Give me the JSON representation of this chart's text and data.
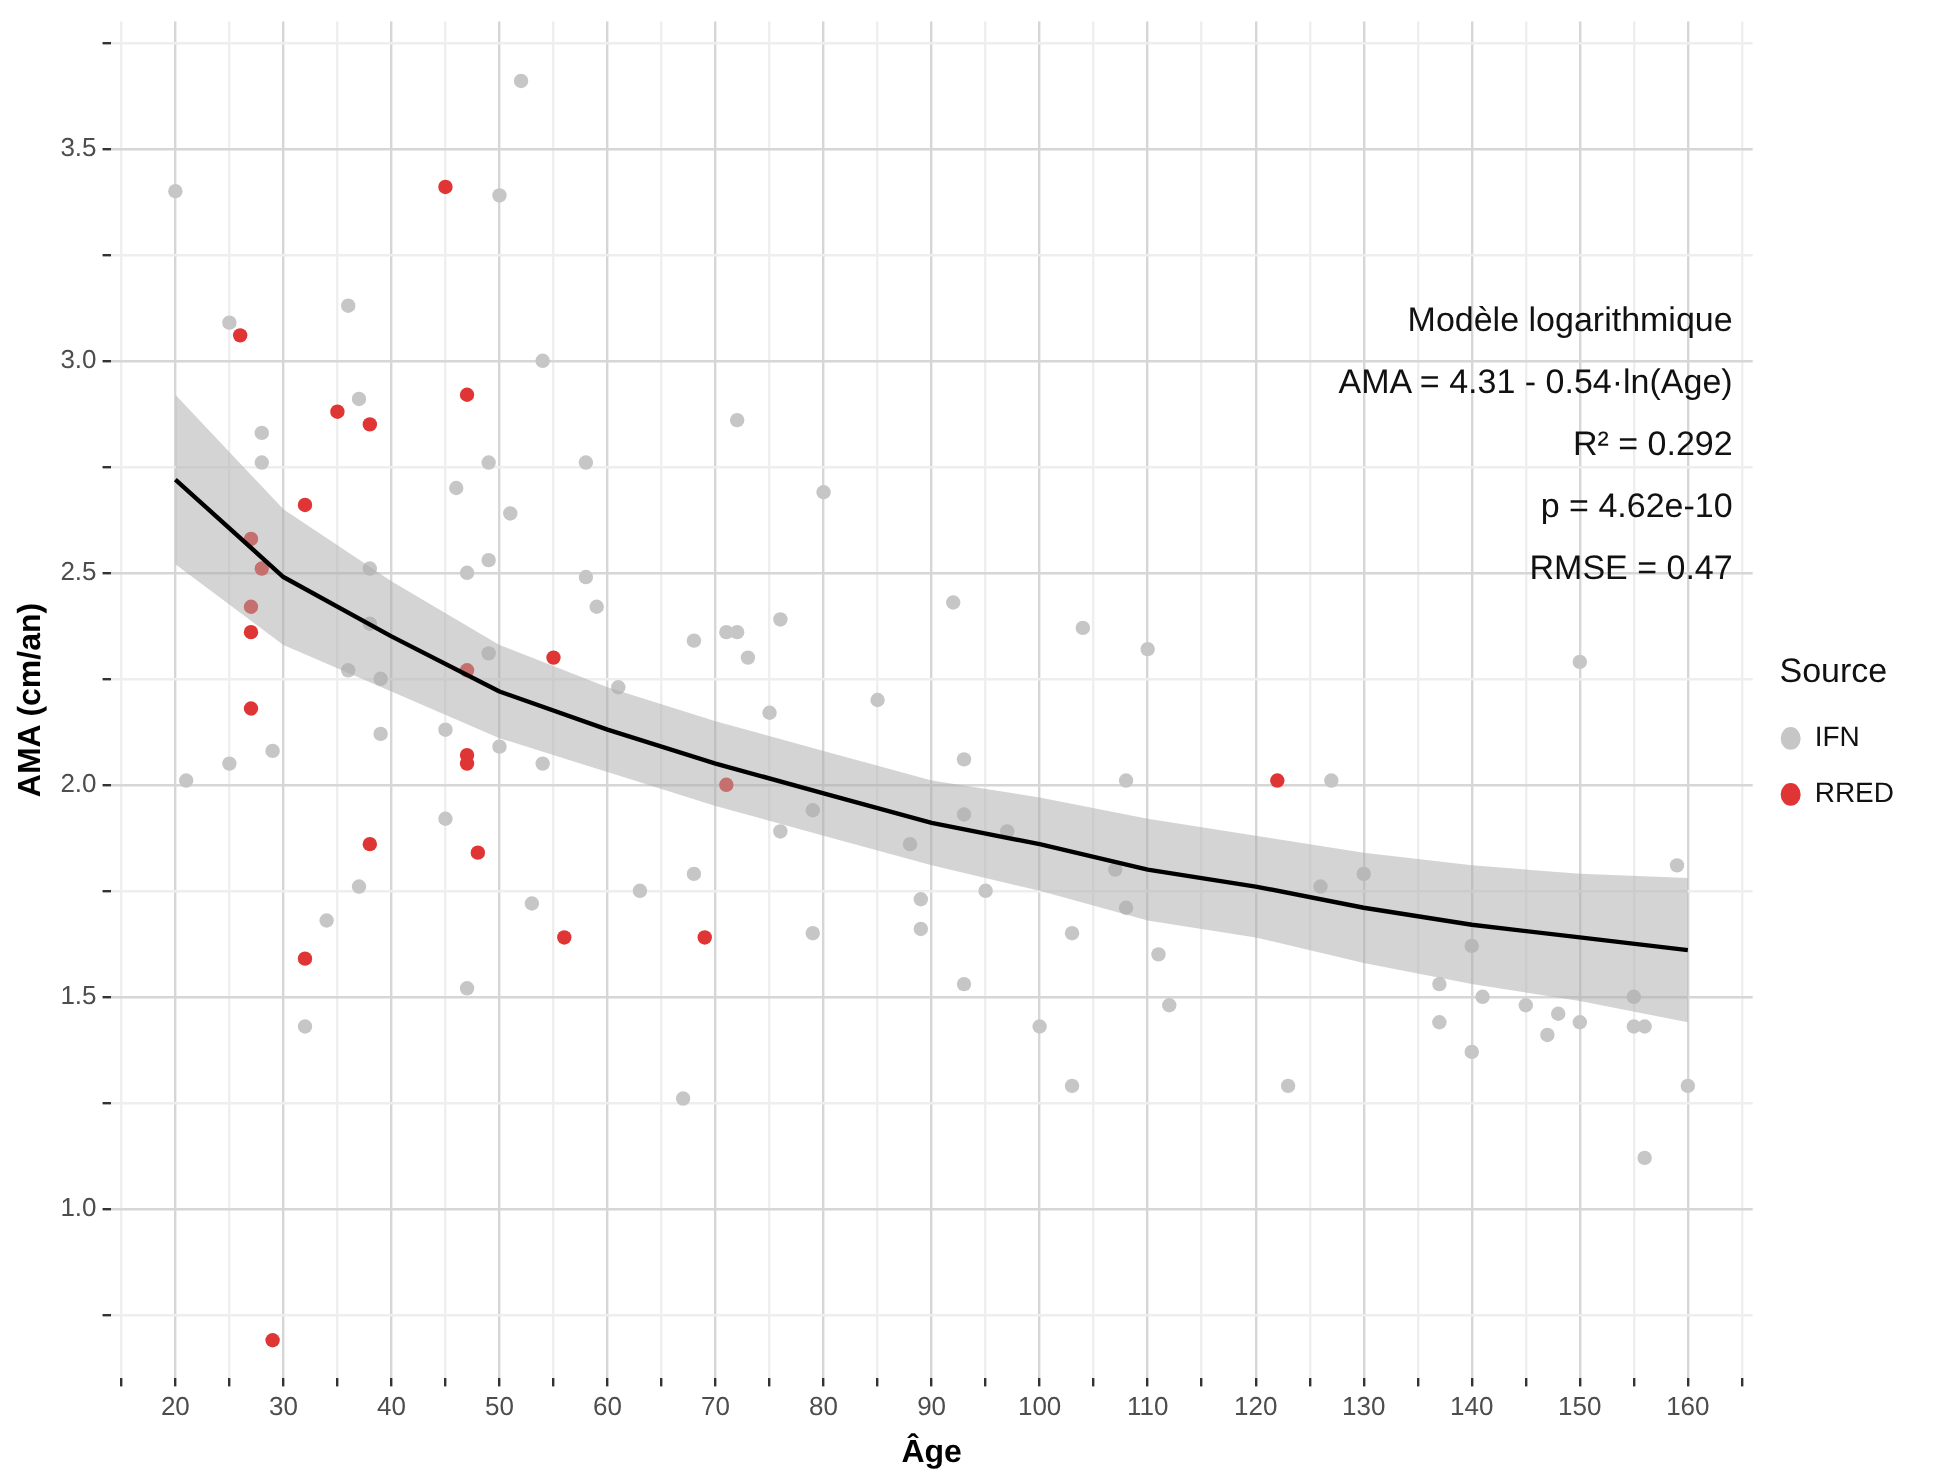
{
  "chart_data": {
    "type": "scatter",
    "xlabel": "Âge",
    "ylabel": "AMA (cm/an)",
    "legend_title": "Source",
    "legend": "right",
    "grid": true,
    "xlim": [
      14,
      166
    ],
    "xticks": [
      {
        "value": 15,
        "label": null
      },
      20,
      {
        "value": 25,
        "label": null
      },
      30,
      {
        "value": 35,
        "label": null
      },
      40,
      {
        "value": 45,
        "label": null
      },
      50,
      {
        "value": 55,
        "label": null
      },
      60,
      {
        "value": 65,
        "label": null
      },
      70,
      {
        "value": 75,
        "label": null
      },
      80,
      {
        "value": 85,
        "label": null
      },
      90,
      {
        "value": 95,
        "label": null
      },
      100,
      {
        "value": 105,
        "label": null
      },
      110,
      {
        "value": 115,
        "label": null
      },
      120,
      {
        "value": 125,
        "label": null
      },
      130,
      {
        "value": 135,
        "label": null
      },
      140,
      {
        "value": 145,
        "label": null
      },
      150,
      {
        "value": 155,
        "label": null
      },
      160,
      {
        "value": 165,
        "label": null
      }
    ],
    "ylim": [
      0.6,
      3.8
    ],
    "yticks": [
      {
        "value": 0.75,
        "label": null
      },
      {
        "value": 1,
        "label": "1.0"
      },
      {
        "value": 1.25,
        "label": null
      },
      1.5,
      {
        "value": 1.75,
        "label": null
      },
      {
        "value": 2,
        "label": "2.0"
      },
      {
        "value": 2.25,
        "label": null
      },
      2.5,
      {
        "value": 2.75,
        "label": null
      },
      {
        "value": 3,
        "label": "3.0"
      },
      {
        "value": 3.25,
        "label": null
      },
      3.5,
      {
        "value": 3.75,
        "label": null
      }
    ],
    "annotations": [
      "Modèle logarithmique",
      "AMA = 4.31 - 0.54·ln(Age)",
      "R² = 0.292",
      "p = 4.62e-10",
      "RMSE = 0.47"
    ],
    "series": [
      {
        "name": "IFN",
        "color": "#c6c6c6",
        "marker": "circle",
        "x": [
          20,
          52,
          50,
          25,
          36,
          54,
          37,
          28,
          28,
          49,
          58,
          46,
          51,
          38,
          49,
          47,
          58,
          59,
          38,
          49,
          36,
          39,
          61,
          29,
          39,
          45,
          50,
          25,
          21,
          54,
          45,
          37,
          34,
          53,
          47,
          32,
          63,
          72,
          80,
          92,
          104,
          110,
          68,
          71,
          72,
          76,
          73,
          75,
          85,
          79,
          76,
          68,
          79,
          67,
          88,
          89,
          89,
          93,
          93,
          93,
          95,
          97,
          100,
          103,
          103,
          108,
          108,
          107,
          111,
          112,
          150,
          127,
          130,
          126,
          123,
          159,
          140,
          137,
          137,
          141,
          140,
          145,
          148,
          147,
          150,
          155,
          155,
          156,
          156,
          160
        ],
        "values": [
          3.4,
          3.66,
          3.39,
          3.09,
          3.13,
          3.0,
          2.91,
          2.83,
          2.76,
          2.76,
          2.76,
          2.7,
          2.64,
          2.51,
          2.53,
          2.5,
          2.49,
          2.42,
          2.38,
          2.31,
          2.27,
          2.25,
          2.23,
          2.08,
          2.12,
          2.13,
          2.09,
          2.05,
          2.01,
          2.05,
          1.92,
          1.76,
          1.68,
          1.72,
          1.52,
          1.43,
          1.75,
          2.86,
          2.69,
          2.43,
          2.37,
          2.32,
          2.34,
          2.36,
          2.36,
          2.39,
          2.3,
          2.17,
          2.2,
          1.94,
          1.89,
          1.79,
          1.65,
          1.26,
          1.86,
          1.73,
          1.66,
          2.06,
          1.93,
          1.53,
          1.75,
          1.89,
          1.43,
          1.65,
          1.29,
          2.01,
          1.71,
          1.8,
          1.6,
          1.48,
          2.29,
          2.01,
          1.79,
          1.76,
          1.29,
          1.81,
          1.62,
          1.53,
          1.44,
          1.5,
          1.37,
          1.48,
          1.46,
          1.41,
          1.44,
          1.5,
          1.43,
          1.43,
          1.12,
          1.29
        ]
      },
      {
        "name": "RRED",
        "color": "#e03535",
        "marker": "circle",
        "x": [
          45,
          26,
          47,
          35,
          38,
          32,
          27,
          28,
          27,
          27,
          55,
          47,
          27,
          47,
          47,
          38,
          48,
          56,
          32,
          29,
          71,
          69,
          122
        ],
        "values": [
          3.41,
          3.06,
          2.92,
          2.88,
          2.85,
          2.66,
          2.58,
          2.51,
          2.42,
          2.36,
          2.3,
          2.27,
          2.18,
          2.07,
          2.05,
          1.86,
          1.84,
          1.64,
          1.59,
          0.69,
          2.0,
          1.64,
          2.01
        ]
      },
      {
        "type": "line",
        "color": "#000000",
        "marker": "none",
        "x": [
          20,
          30,
          40,
          50,
          60,
          70,
          80,
          90,
          100,
          110,
          120,
          130,
          140,
          150,
          160
        ],
        "values": [
          2.72,
          2.49,
          2.35,
          2.22,
          2.13,
          2.05,
          1.98,
          1.91,
          1.86,
          1.8,
          1.76,
          1.71,
          1.67,
          1.64,
          1.61
        ],
        "lower": [
          2.52,
          2.33,
          2.22,
          2.11,
          2.03,
          1.95,
          1.88,
          1.81,
          1.75,
          1.68,
          1.64,
          1.58,
          1.53,
          1.49,
          1.44
        ],
        "upper": [
          2.92,
          2.65,
          2.48,
          2.33,
          2.23,
          2.15,
          2.08,
          2.01,
          1.97,
          1.92,
          1.88,
          1.84,
          1.81,
          1.79,
          1.78
        ]
      }
    ]
  }
}
